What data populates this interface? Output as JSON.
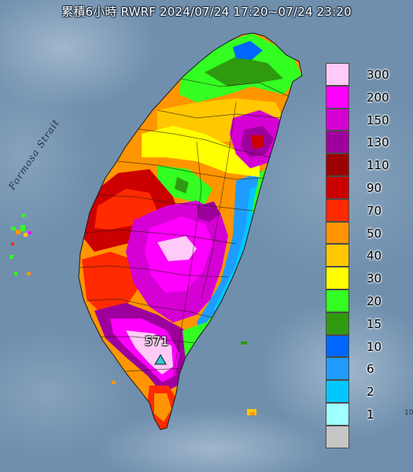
{
  "title": "累積6小時 RWRF 2024/07/24 17:20~07/24 23:20",
  "map_label": "Formosa Strait",
  "max_value_label": "571",
  "edge_mark": "10",
  "legend": [
    {
      "label": "300",
      "color": "#ffcaf8"
    },
    {
      "label": "200",
      "color": "#ff00ff"
    },
    {
      "label": "150",
      "color": "#d400d4"
    },
    {
      "label": "130",
      "color": "#9d009d"
    },
    {
      "label": "110",
      "color": "#9c0000"
    },
    {
      "label": "90",
      "color": "#cc0000"
    },
    {
      "label": "70",
      "color": "#ff2a00"
    },
    {
      "label": "50",
      "color": "#ff9500"
    },
    {
      "label": "40",
      "color": "#ffc800"
    },
    {
      "label": "30",
      "color": "#ffff00"
    },
    {
      "label": "20",
      "color": "#33ff22"
    },
    {
      "label": "15",
      "color": "#2f9a10"
    },
    {
      "label": "10",
      "color": "#0066ff"
    },
    {
      "label": "6",
      "color": "#1e9cff"
    },
    {
      "label": "2",
      "color": "#00c8ff"
    },
    {
      "label": "1",
      "color": "#a0ffff"
    },
    {
      "label": "",
      "color": "#c6c6c6"
    }
  ],
  "colors": {
    "sea": "#6f8fad",
    "land_base": "#ff9500",
    "east_coast": "#1e9cff",
    "north": "#33ff22",
    "station_marker": "#34c6d6"
  }
}
